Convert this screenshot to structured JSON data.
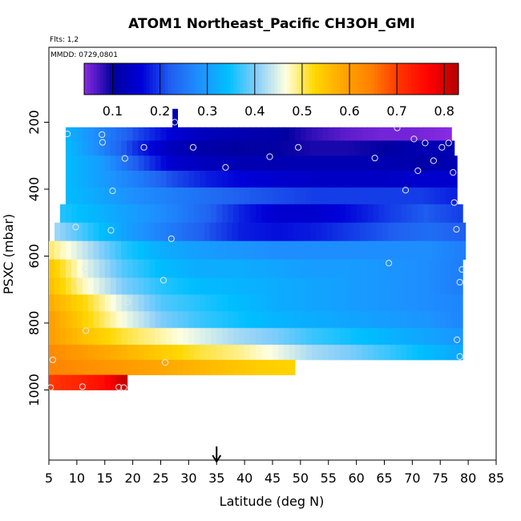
{
  "chart_data": {
    "type": "heatmap",
    "title": "ATOM1 Northeast_Pacific CH3OH_GMI",
    "annotations": {
      "flights": "Flts: 1,2",
      "dates": "MMDD: 0729,0801"
    },
    "xlabel": "Latitude (deg N)",
    "ylabel": "PSXC (mbar)",
    "xlim": [
      5,
      85
    ],
    "ylim": [
      1000,
      0
    ],
    "x_ticks": [
      "5",
      "10",
      "15",
      "20",
      "25",
      "30",
      "35",
      "40",
      "45",
      "50",
      "55",
      "60",
      "65",
      "70",
      "75",
      "80",
      "85"
    ],
    "y_ticks": [
      "200",
      "400",
      "600",
      "800",
      "1000"
    ],
    "colorbar": {
      "range": [
        0.04,
        0.83
      ],
      "ticks": [
        "0.1",
        "0.2",
        "0.3",
        "0.4",
        "0.5",
        "0.6",
        "0.7",
        "0.8"
      ],
      "colors": [
        "#8a2be2",
        "#0000a0",
        "#0000d8",
        "#2060f0",
        "#1e90ff",
        "#00bfff",
        "#87cefa",
        "#ffffe0",
        "#ffd700",
        "#ffa500",
        "#ff7f00",
        "#ff3000",
        "#ff0000",
        "#b20000"
      ]
    },
    "marker": {
      "x": 35,
      "label": "arrow"
    },
    "bands": [
      {
        "p_top": 160,
        "p_bot": 220,
        "lat_start": 27.1,
        "lat_end": 28.0,
        "values": [
          0.12
        ]
      },
      {
        "p_top": 215,
        "p_bot": 260,
        "lat_start": 8,
        "lat_end": 77,
        "values": [
          0.33,
          0.27,
          0.21,
          0.16,
          0.13,
          0.12,
          0.11,
          0.08,
          0.06,
          0.05,
          0.05,
          0.04
        ]
      },
      {
        "p_top": 255,
        "p_bot": 300,
        "lat_start": 8,
        "lat_end": 77.5,
        "values": [
          0.34,
          0.27,
          0.19,
          0.13,
          0.11,
          0.1,
          0.1,
          0.09,
          0.09,
          0.1,
          0.12,
          0.12
        ]
      },
      {
        "p_top": 300,
        "p_bot": 345,
        "lat_start": 8,
        "lat_end": 78,
        "values": [
          0.34,
          0.3,
          0.22,
          0.15,
          0.13,
          0.12,
          0.12,
          0.12,
          0.12,
          0.12,
          0.11,
          0.12
        ]
      },
      {
        "p_top": 345,
        "p_bot": 395,
        "lat_start": 8,
        "lat_end": 78,
        "values": [
          0.34,
          0.3,
          0.26,
          0.21,
          0.18,
          0.16,
          0.15,
          0.14,
          0.14,
          0.14,
          0.15,
          0.15
        ]
      },
      {
        "p_top": 395,
        "p_bot": 445,
        "lat_start": 8,
        "lat_end": 78,
        "values": [
          0.34,
          0.31,
          0.28,
          0.26,
          0.24,
          0.22,
          0.21,
          0.2,
          0.2,
          0.2,
          0.2,
          0.18
        ]
      },
      {
        "p_top": 445,
        "p_bot": 500,
        "lat_start": 7,
        "lat_end": 79,
        "values": [
          0.36,
          0.33,
          0.3,
          0.27,
          0.23,
          0.18,
          0.15,
          0.15,
          0.17,
          0.2,
          0.22,
          0.2
        ]
      },
      {
        "p_top": 500,
        "p_bot": 555,
        "lat_start": 6,
        "lat_end": 79.5,
        "values": [
          0.42,
          0.36,
          0.3,
          0.26,
          0.22,
          0.18,
          0.17,
          0.18,
          0.2,
          0.22,
          0.24,
          0.22
        ]
      },
      {
        "p_top": 555,
        "p_bot": 610,
        "lat_start": 5,
        "lat_end": 79.5,
        "values": [
          0.5,
          0.43,
          0.36,
          0.32,
          0.3,
          0.29,
          0.28,
          0.28,
          0.28,
          0.28,
          0.28,
          0.26
        ]
      },
      {
        "p_top": 610,
        "p_bot": 665,
        "lat_start": 5,
        "lat_end": 79,
        "values": [
          0.55,
          0.45,
          0.38,
          0.34,
          0.32,
          0.32,
          0.31,
          0.3,
          0.3,
          0.29,
          0.28,
          0.26
        ]
      },
      {
        "p_top": 665,
        "p_bot": 715,
        "lat_start": 5,
        "lat_end": 79,
        "values": [
          0.56,
          0.47,
          0.4,
          0.36,
          0.34,
          0.33,
          0.32,
          0.31,
          0.3,
          0.29,
          0.28,
          0.26
        ]
      },
      {
        "p_top": 715,
        "p_bot": 765,
        "lat_start": 5,
        "lat_end": 79,
        "values": [
          0.58,
          0.52,
          0.44,
          0.38,
          0.36,
          0.34,
          0.32,
          0.31,
          0.3,
          0.29,
          0.28,
          0.27
        ]
      },
      {
        "p_top": 765,
        "p_bot": 815,
        "lat_start": 5,
        "lat_end": 79,
        "values": [
          0.6,
          0.53,
          0.46,
          0.4,
          0.37,
          0.35,
          0.33,
          0.32,
          0.31,
          0.3,
          0.29,
          0.27
        ]
      },
      {
        "p_top": 815,
        "p_bot": 865,
        "lat_start": 5,
        "lat_end": 79,
        "values": [
          0.6,
          0.55,
          0.51,
          0.48,
          0.45,
          0.42,
          0.4,
          0.37,
          0.35,
          0.33,
          0.31,
          0.29
        ]
      },
      {
        "p_top": 865,
        "p_bot": 910,
        "lat_start": 5,
        "lat_end": 79,
        "values": [
          0.63,
          0.6,
          0.57,
          0.54,
          0.51,
          0.49,
          0.46,
          0.42,
          0.4,
          0.37,
          0.34,
          0.31
        ]
      },
      {
        "p_top": 910,
        "p_bot": 955,
        "lat_start": 5,
        "lat_end": 49,
        "values": [
          0.64,
          0.62,
          0.6,
          0.58,
          0.56,
          0.54,
          0.53
        ]
      },
      {
        "p_top": 955,
        "p_bot": 1000,
        "lat_start": 5,
        "lat_end": 19,
        "values": [
          0.7,
          0.72,
          0.75,
          0.82
        ]
      }
    ],
    "flight_points": [
      {
        "lat": 27.5,
        "p": 200
      },
      {
        "lat": 8.3,
        "p": 235
      },
      {
        "lat": 14.5,
        "p": 237
      },
      {
        "lat": 14.6,
        "p": 260
      },
      {
        "lat": 22,
        "p": 275
      },
      {
        "lat": 30.8,
        "p": 275
      },
      {
        "lat": 44.5,
        "p": 303
      },
      {
        "lat": 49.6,
        "p": 275
      },
      {
        "lat": 67.3,
        "p": 217
      },
      {
        "lat": 70.3,
        "p": 250
      },
      {
        "lat": 72.3,
        "p": 262
      },
      {
        "lat": 75.3,
        "p": 275
      },
      {
        "lat": 76.5,
        "p": 262
      },
      {
        "lat": 63.3,
        "p": 307
      },
      {
        "lat": 18.6,
        "p": 308
      },
      {
        "lat": 73.8,
        "p": 315
      },
      {
        "lat": 36.6,
        "p": 335
      },
      {
        "lat": 71,
        "p": 345
      },
      {
        "lat": 77.3,
        "p": 350
      },
      {
        "lat": 16.4,
        "p": 405
      },
      {
        "lat": 68.8,
        "p": 403
      },
      {
        "lat": 77.5,
        "p": 440
      },
      {
        "lat": 9.8,
        "p": 513
      },
      {
        "lat": 16.1,
        "p": 523
      },
      {
        "lat": 26.9,
        "p": 548
      },
      {
        "lat": 77.9,
        "p": 520
      },
      {
        "lat": 65.8,
        "p": 621
      },
      {
        "lat": 11.5,
        "p": 638
      },
      {
        "lat": 78.9,
        "p": 640
      },
      {
        "lat": 25.5,
        "p": 672
      },
      {
        "lat": 10.3,
        "p": 677
      },
      {
        "lat": 78.5,
        "p": 678
      },
      {
        "lat": 19,
        "p": 738
      },
      {
        "lat": 11.6,
        "p": 823
      },
      {
        "lat": 78,
        "p": 850
      },
      {
        "lat": 78.5,
        "p": 900
      },
      {
        "lat": 5.7,
        "p": 910
      },
      {
        "lat": 25.8,
        "p": 918
      },
      {
        "lat": 5.3,
        "p": 993
      },
      {
        "lat": 11,
        "p": 990
      },
      {
        "lat": 17.5,
        "p": 992
      },
      {
        "lat": 18.4,
        "p": 993
      }
    ]
  }
}
